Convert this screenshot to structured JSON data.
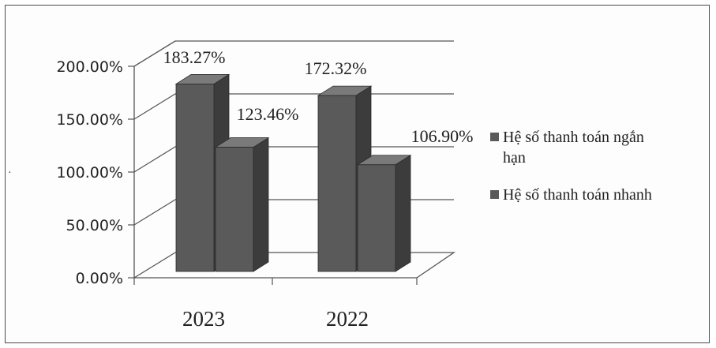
{
  "chart_data": {
    "type": "bar",
    "categories": [
      "2023",
      "2022"
    ],
    "series": [
      {
        "name": "Hệ số thanh toán ngắn hạn",
        "values": [
          183.27,
          172.32
        ],
        "labels": [
          "183.27%",
          "172.32%"
        ]
      },
      {
        "name": "Hệ số thanh toán nhanh",
        "values": [
          123.46,
          106.9
        ],
        "labels": [
          "123.46%",
          "106.90%"
        ]
      }
    ],
    "yticks": [
      "0.00%",
      "50.00%",
      "100.00%",
      "150.00%",
      "200.00%"
    ],
    "ylim": [
      0,
      200
    ],
    "grid": true,
    "legend_position": "right",
    "colors": {
      "bar_front": "#5a5a5a",
      "bar_side": "#3c3c3c",
      "bar_top": "#7a7a7a",
      "grid": "#555555"
    }
  },
  "stray_mark": "·"
}
